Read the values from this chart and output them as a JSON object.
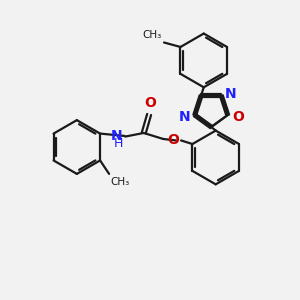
{
  "bg_color": "#f2f2f2",
  "bond_color": "#1a1a1a",
  "N_color": "#2020ff",
  "O_color": "#cc0000",
  "line_width": 1.6,
  "dbo": 0.08,
  "font_size": 10,
  "fig_size": [
    3.0,
    3.0
  ],
  "dpi": 100,
  "xlim": [
    0,
    10
  ],
  "ylim": [
    0,
    10
  ]
}
